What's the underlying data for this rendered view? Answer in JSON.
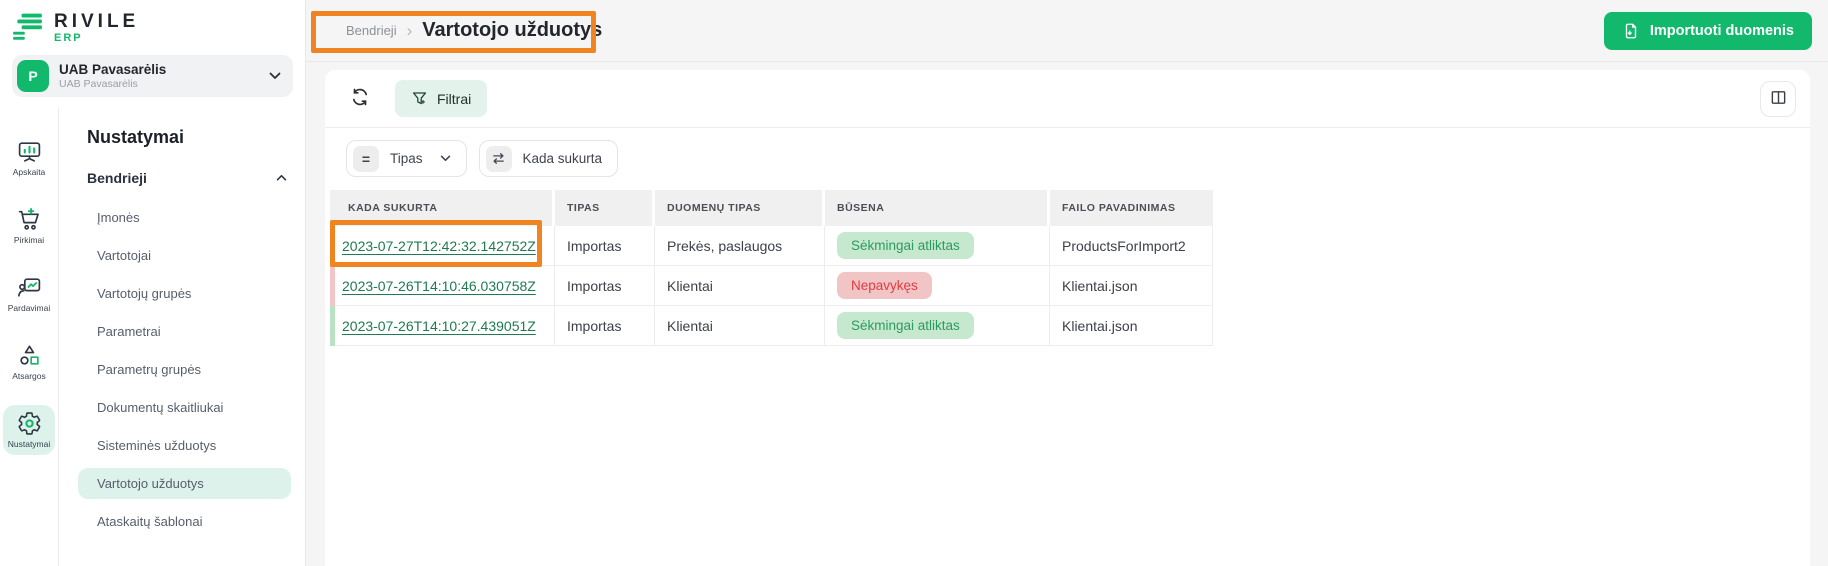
{
  "brand": {
    "name": "RIVILE",
    "product": "ERP"
  },
  "company": {
    "initial": "P",
    "name": "UAB Pavasarėlis",
    "subtitle": "UAB Pavasarėlis"
  },
  "rail": {
    "items": [
      {
        "label": "Apskaita",
        "icon": "chart-board-icon",
        "active": false
      },
      {
        "label": "Pirkimai",
        "icon": "cart-icon",
        "active": false
      },
      {
        "label": "Pardavimai",
        "icon": "sales-chart-icon",
        "active": false
      },
      {
        "label": "Atsargos",
        "icon": "shapes-icon",
        "active": false
      },
      {
        "label": "Nustatymai",
        "icon": "gear-icon",
        "active": true
      }
    ]
  },
  "menu": {
    "heading": "Nustatymai",
    "section": "Bendrieji",
    "items": [
      "Įmonės",
      "Vartotojai",
      "Vartotojų grupės",
      "Parametrai",
      "Parametrų grupės",
      "Dokumentų skaitliukai",
      "Sisteminės užduotys",
      "Vartotojo užduotys",
      "Ataskaitų šablonai"
    ],
    "active": "Vartotojo užduotys"
  },
  "breadcrumb": {
    "parent": "Bendrieji",
    "current": "Vartotojo užduotys"
  },
  "actions": {
    "import": "Importuoti duomenis",
    "filters": "Filtrai"
  },
  "filters": [
    {
      "label": "Tipas",
      "icon": "equals-icon",
      "chevron": true
    },
    {
      "label": "Kada sukurta",
      "icon": "swap-arrows-icon",
      "chevron": false
    }
  ],
  "table": {
    "columns": [
      "KADA SUKURTA",
      "TIPAS",
      "DUOMENŲ TIPAS",
      "BŪSENA",
      "FAILO PAVADINIMAS"
    ],
    "rows": [
      {
        "created": "2023-07-27T12:42:32.142752Z",
        "type": "Importas",
        "data_type": "Prekės, paslaugos",
        "status": "Sėkmingai atliktas",
        "status_kind": "success",
        "file": "ProductsForImport2"
      },
      {
        "created": "2023-07-26T14:10:46.030758Z",
        "type": "Importas",
        "data_type": "Klientai",
        "status": "Nepavykęs",
        "status_kind": "error",
        "file": "Klientai.json"
      },
      {
        "created": "2023-07-26T14:10:27.439051Z",
        "type": "Importas",
        "data_type": "Klientai",
        "status": "Sėkmingai atliktas",
        "status_kind": "success",
        "file": "Klientai.json"
      }
    ]
  },
  "colors": {
    "accent": "#12b96c",
    "link": "#1f7a52",
    "success_bg": "#c5e8cf",
    "success_text": "#2d9a5e",
    "error_bg": "#f1c5c5",
    "error_text": "#e23b41",
    "annotation": "#f08421"
  }
}
